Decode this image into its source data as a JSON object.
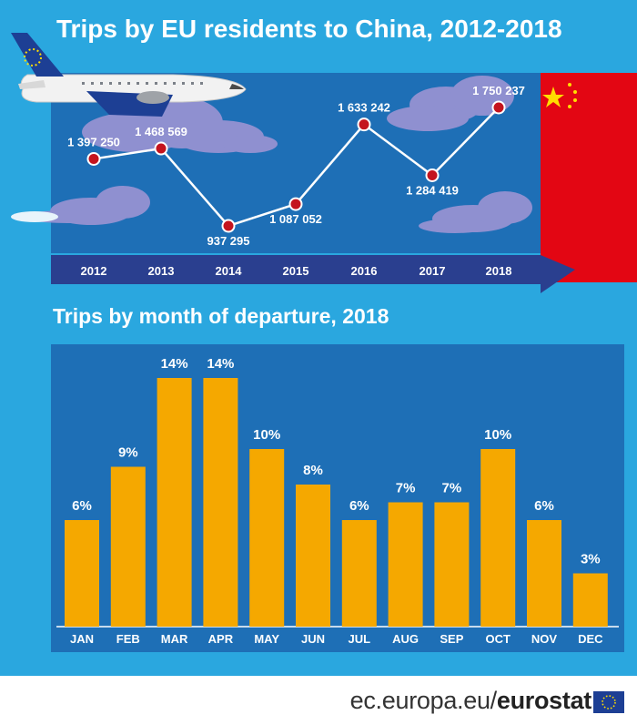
{
  "title_top": "Trips by EU residents to China, 2012-2018",
  "title_bottom": "Trips by month of departure, 2018",
  "footer": {
    "domain": "ec.europa.eu/",
    "brand": "eurostat"
  },
  "colors": {
    "background": "#2aa7df",
    "panel": "#1e6fb6",
    "bar": "#f5a800",
    "china_red": "#e30613",
    "china_star": "#ffde00",
    "marker": "#c4141e",
    "arrow": "#2a3f8f"
  },
  "icons": [
    "airplane-icon",
    "cloud-icon",
    "china-flag-icon",
    "eu-flag-icon"
  ],
  "chart_data": [
    {
      "type": "line",
      "title": "Trips by EU residents to China, 2012-2018",
      "categories": [
        "2012",
        "2013",
        "2014",
        "2015",
        "2016",
        "2017",
        "2018"
      ],
      "values": [
        1397250,
        1468569,
        937295,
        1087052,
        1633242,
        1284419,
        1750237
      ],
      "data_labels": [
        "1 397 250",
        "1 468 569",
        "937 295",
        "1 087 052",
        "1 633 242",
        "1 284 419",
        "1 750 237"
      ],
      "ylim": [
        800000,
        1800000
      ],
      "grid": false
    },
    {
      "type": "bar",
      "title": "Trips by month of departure, 2018",
      "categories": [
        "JAN",
        "FEB",
        "MAR",
        "APR",
        "MAY",
        "JUN",
        "JUL",
        "AUG",
        "SEP",
        "OCT",
        "NOV",
        "DEC"
      ],
      "values": [
        6,
        9,
        14,
        14,
        10,
        8,
        6,
        7,
        7,
        10,
        6,
        3
      ],
      "data_labels": [
        "6%",
        "9%",
        "14%",
        "14%",
        "10%",
        "8%",
        "6%",
        "7%",
        "7%",
        "10%",
        "6%",
        "3%"
      ],
      "ylim": [
        0,
        16
      ],
      "grid": false
    }
  ]
}
